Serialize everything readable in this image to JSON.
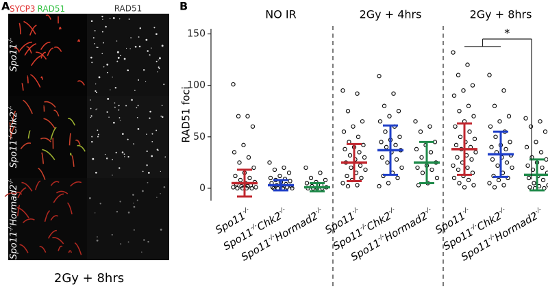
{
  "panel_a": {
    "label": "A",
    "header_sycp3": "SYCP3",
    "header_rad51_merge": "RAD51",
    "header_rad51": "RAD51",
    "rows": [
      "Spo11-/-",
      "Spo11-/-Chk2-/-",
      "Spo11-/-Hormad2-/-"
    ],
    "caption": "2Gy + 8hrs"
  },
  "chart_data": {
    "type": "strip",
    "panel_label": "B",
    "y_label": "RAD51 foci",
    "ylim": [
      -12,
      155
    ],
    "yticks": [
      0,
      50,
      100,
      150
    ],
    "groups": [
      "NO IR",
      "2Gy + 4hrs",
      "2Gy + 8hrs"
    ],
    "categories": [
      {
        "name": "Spo11-/-",
        "group": 0,
        "color": "#c0262e",
        "mean": 5,
        "sd": 13,
        "points": [
          101,
          70,
          70,
          60,
          42,
          35,
          30,
          25,
          20,
          15,
          12,
          10,
          8,
          6,
          5,
          4,
          3,
          2,
          1,
          0,
          0,
          0,
          0,
          1,
          2
        ]
      },
      {
        "name": "Spo11-/-Chk2-/-",
        "group": 0,
        "color": "#1f3fc8",
        "mean": 3,
        "sd": 5,
        "points": [
          25,
          20,
          18,
          15,
          12,
          10,
          9,
          8,
          7,
          6,
          5,
          4,
          3,
          2,
          2,
          1,
          1,
          0,
          0,
          0,
          0
        ]
      },
      {
        "name": "Spo11-/-Hormad2-/-",
        "group": 0,
        "color": "#1f8a4a",
        "mean": 1,
        "sd": 4,
        "points": [
          20,
          15,
          10,
          8,
          6,
          5,
          3,
          2,
          1,
          0,
          0,
          0,
          0
        ]
      },
      {
        "name": "Spo11-/-",
        "group": 1,
        "color": "#c0262e",
        "mean": 25,
        "sd": 18,
        "points": [
          95,
          92,
          75,
          65,
          60,
          55,
          50,
          45,
          42,
          40,
          38,
          35,
          32,
          30,
          28,
          25,
          22,
          20,
          18,
          15,
          12,
          10,
          8,
          5,
          3,
          2
        ]
      },
      {
        "name": "Spo11-/-Chk2-/-",
        "group": 1,
        "color": "#1f3fc8",
        "mean": 37,
        "sd": 24,
        "points": [
          109,
          92,
          80,
          75,
          70,
          65,
          60,
          55,
          50,
          47,
          45,
          42,
          40,
          37,
          35,
          30,
          28,
          25,
          20,
          15,
          12,
          10,
          5,
          2
        ]
      },
      {
        "name": "Spo11-/-Hormad2-/-",
        "group": 1,
        "color": "#1f8a4a",
        "mean": 25,
        "sd": 20,
        "points": [
          65,
          60,
          55,
          45,
          42,
          38,
          35,
          30,
          25,
          22,
          20,
          18,
          15,
          10,
          5,
          3
        ]
      },
      {
        "name": "Spo11-/-",
        "group": 2,
        "color": "#c0262e",
        "mean": 38,
        "sd": 25,
        "points": [
          132,
          120,
          110,
          100,
          95,
          90,
          80,
          75,
          70,
          65,
          60,
          55,
          50,
          48,
          45,
          42,
          40,
          38,
          35,
          32,
          30,
          28,
          25,
          22,
          20,
          18,
          15,
          12,
          10,
          8,
          5,
          3,
          1
        ]
      },
      {
        "name": "Spo11-/-Chk2-/-",
        "group": 2,
        "color": "#1f3fc8",
        "mean": 33,
        "sd": 22,
        "points": [
          110,
          95,
          80,
          70,
          65,
          60,
          55,
          50,
          45,
          42,
          40,
          38,
          35,
          32,
          30,
          28,
          25,
          22,
          20,
          15,
          12,
          10,
          8,
          5,
          3,
          1
        ]
      },
      {
        "name": "Spo11-/-Hormad2-/-",
        "group": 2,
        "color": "#1f8a4a",
        "mean": 13,
        "sd": 15,
        "points": [
          68,
          65,
          60,
          55,
          45,
          40,
          35,
          30,
          28,
          25,
          22,
          20,
          18,
          15,
          12,
          10,
          8,
          5,
          3,
          2,
          1,
          0,
          0
        ]
      }
    ],
    "annotation": "*"
  }
}
